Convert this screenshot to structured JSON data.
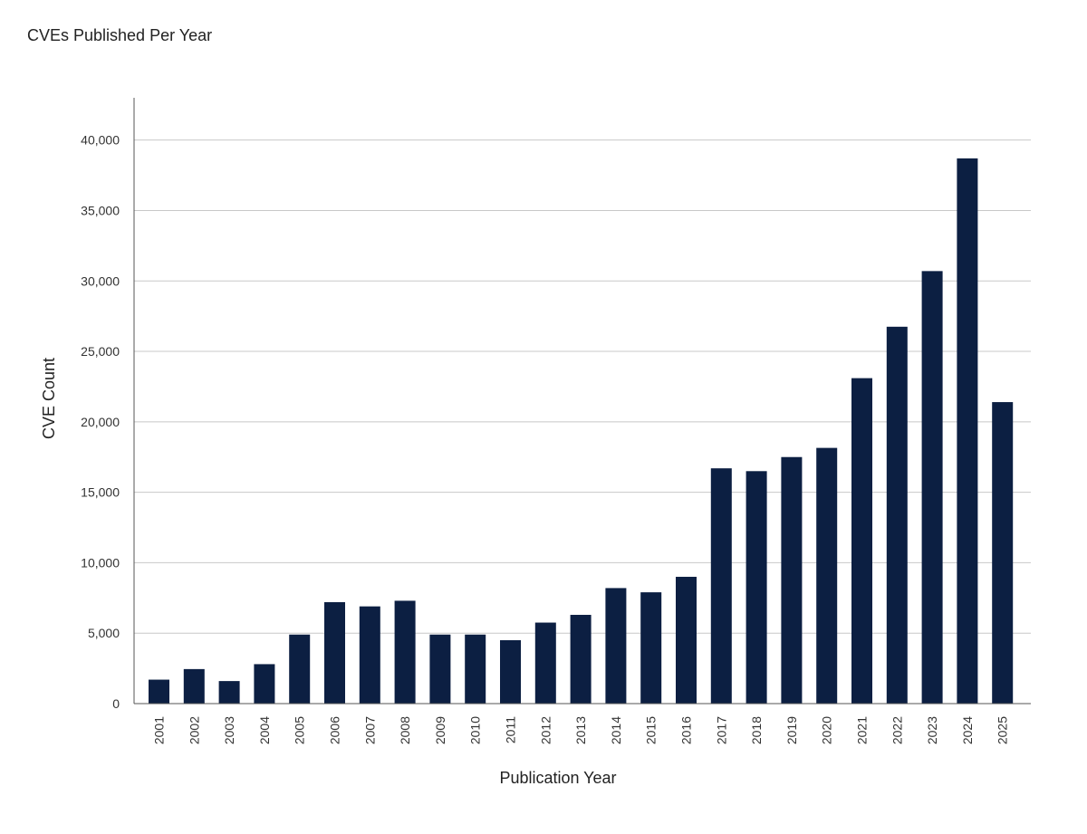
{
  "chart_data": {
    "type": "bar",
    "title": "CVEs Published Per Year",
    "xlabel": "Publication Year",
    "ylabel": "CVE Count",
    "categories": [
      "2001",
      "2002",
      "2003",
      "2004",
      "2005",
      "2006",
      "2007",
      "2008",
      "2009",
      "2010",
      "2011",
      "2012",
      "2013",
      "2014",
      "2015",
      "2016",
      "2017",
      "2018",
      "2019",
      "2020",
      "2021",
      "2022",
      "2023",
      "2024",
      "2025"
    ],
    "values": [
      1700,
      2450,
      1600,
      2800,
      4900,
      7200,
      6900,
      7300,
      4900,
      4900,
      4500,
      5750,
      6300,
      8200,
      7900,
      9000,
      16700,
      16500,
      17500,
      18150,
      23100,
      26750,
      30700,
      38700,
      21400
    ],
    "yticks": [
      {
        "value": 0,
        "label": "0"
      },
      {
        "value": 5000,
        "label": "5,000"
      },
      {
        "value": 10000,
        "label": "10,000"
      },
      {
        "value": 15000,
        "label": "15,000"
      },
      {
        "value": 20000,
        "label": "20,000"
      },
      {
        "value": 25000,
        "label": "25,000"
      },
      {
        "value": 30000,
        "label": "30,000"
      },
      {
        "value": 35000,
        "label": "35,000"
      },
      {
        "value": 40000,
        "label": "40,000"
      }
    ],
    "ylim": [
      0,
      43000
    ],
    "grid": true,
    "bar_color": "#0c1f42",
    "gridline_color": "#c8c8c8",
    "axis_color": "#555555"
  }
}
